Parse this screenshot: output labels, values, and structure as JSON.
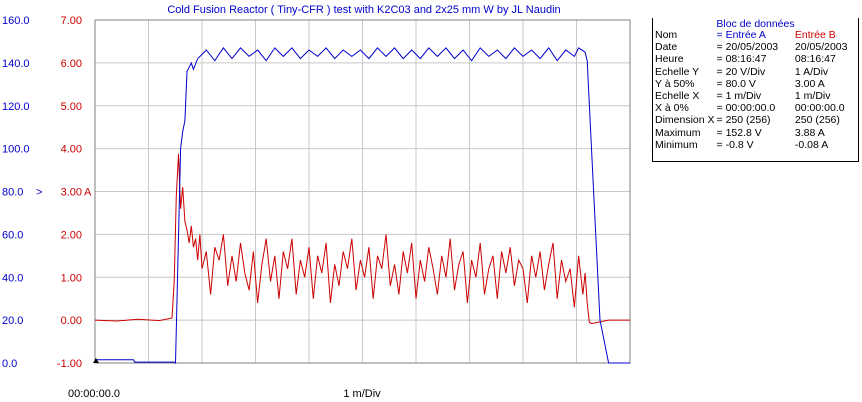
{
  "chart_data": {
    "type": "line",
    "title": "Cold Fusion Reactor ( Tiny-CFR ) test with K2C03 and 2x25 mm W by JL Naudin",
    "x_label_left": "00:00:00.0",
    "x_label_center": "1 m/Div",
    "y_left": {
      "ticks": [
        "0.0",
        "20.0",
        "40.0",
        "60.0",
        "80.0",
        "100.0",
        "120.0",
        "140.0",
        "160.0"
      ],
      "marker": ">",
      "range": [
        0,
        160
      ],
      "color": "#0000cc"
    },
    "y_right": {
      "ticks": [
        "-1.00",
        "0.00",
        "1.00",
        "2.00",
        "3.00",
        "4.00",
        "5.00",
        "6.00",
        "7.00"
      ],
      "marker": "A",
      "range": [
        -1,
        7
      ],
      "color": "#cc0000"
    },
    "x_range": [
      0,
      250
    ],
    "grid": true,
    "series": [
      {
        "name": "Entrée A",
        "axis": "left",
        "color": "#0000cc",
        "x": [
          0,
          18,
          18.5,
          37,
          37.6,
          40,
          41,
          42,
          43,
          44,
          45,
          46,
          48,
          52,
          56,
          60,
          64,
          68,
          72,
          76,
          80,
          84,
          88,
          92,
          96,
          100,
          104,
          108,
          112,
          116,
          120,
          124,
          128,
          132,
          136,
          140,
          144,
          148,
          152,
          156,
          160,
          164,
          168,
          172,
          176,
          180,
          184,
          188,
          192,
          196,
          200,
          204,
          208,
          212,
          216,
          220,
          224,
          226,
          229,
          230,
          233,
          236,
          240,
          250
        ],
        "y": [
          1.5,
          1.5,
          0.4,
          0.4,
          0,
          100,
          108,
          113,
          136,
          138,
          140,
          137,
          142,
          146,
          141,
          147,
          142,
          147,
          143,
          146,
          141,
          147,
          143,
          147,
          142,
          146,
          143,
          147,
          142,
          146,
          143,
          146,
          142,
          147,
          143,
          147,
          142,
          146,
          142,
          147,
          143,
          147,
          142,
          146,
          141,
          147,
          143,
          146,
          142,
          147,
          143,
          146,
          142,
          147,
          141,
          146,
          143,
          147,
          145,
          141,
          80,
          20,
          0,
          0
        ]
      },
      {
        "name": "Entrée B",
        "axis": "right",
        "color": "#cc0000",
        "x": [
          0,
          10,
          20,
          30,
          36,
          37,
          38,
          39,
          40,
          41,
          42,
          43,
          44,
          45,
          46,
          47,
          48,
          49,
          50,
          52,
          54,
          56,
          58,
          60,
          62,
          64,
          66,
          68,
          70,
          72,
          74,
          76,
          78,
          80,
          82,
          84,
          86,
          88,
          90,
          92,
          94,
          96,
          98,
          100,
          102,
          104,
          106,
          108,
          110,
          112,
          114,
          116,
          118,
          120,
          122,
          124,
          126,
          128,
          130,
          132,
          134,
          136,
          138,
          140,
          142,
          144,
          146,
          148,
          150,
          152,
          154,
          156,
          158,
          160,
          162,
          164,
          166,
          168,
          170,
          172,
          174,
          176,
          178,
          180,
          182,
          184,
          186,
          188,
          190,
          192,
          194,
          196,
          198,
          200,
          202,
          204,
          206,
          208,
          210,
          212,
          214,
          216,
          218,
          220,
          222,
          224,
          226,
          228,
          229,
          230,
          231,
          232,
          240,
          250
        ],
        "y": [
          0,
          -0.02,
          0.02,
          -0.01,
          0.05,
          0.9,
          2.9,
          3.88,
          2.6,
          3.1,
          2.3,
          2.1,
          1.8,
          2.2,
          1.7,
          1.9,
          1.4,
          2.0,
          1.2,
          1.6,
          0.6,
          1.7,
          1.4,
          2.0,
          0.8,
          1.5,
          0.9,
          1.8,
          1.1,
          0.7,
          1.6,
          0.4,
          1.3,
          1.9,
          0.9,
          1.5,
          0.5,
          1.6,
          1.2,
          1.9,
          0.6,
          1.4,
          1.0,
          1.7,
          0.5,
          1.5,
          1.1,
          1.8,
          0.4,
          1.3,
          0.8,
          1.6,
          1.2,
          1.9,
          0.7,
          1.4,
          1.0,
          1.7,
          0.5,
          1.5,
          1.2,
          2.0,
          0.8,
          1.3,
          0.6,
          1.6,
          1.1,
          1.8,
          0.5,
          1.4,
          0.9,
          1.7,
          1.2,
          0.6,
          1.5,
          1.0,
          1.9,
          0.7,
          1.3,
          1.6,
          0.4,
          1.4,
          1.0,
          1.8,
          0.6,
          1.2,
          1.5,
          0.5,
          1.6,
          1.1,
          1.7,
          0.8,
          1.4,
          1.2,
          0.4,
          1.5,
          1.0,
          1.6,
          0.7,
          1.3,
          1.8,
          0.5,
          1.4,
          0.9,
          1.2,
          0.3,
          1.5,
          0.6,
          1.1,
          0.4,
          -0.05,
          -0.08,
          0,
          0
        ]
      }
    ]
  },
  "panel": {
    "title": "Bloc de données",
    "rows": [
      {
        "label": "Nom",
        "a": "= Entrée A",
        "b": "Entrée B"
      },
      {
        "label": "Date",
        "a": "= 20/05/2003",
        "b": "20/05/2003"
      },
      {
        "label": "Heure",
        "a": "= 08:16:47",
        "b": "08:16:47"
      },
      {
        "label": "Echelle Y",
        "a": "=    20   V/Div",
        "b": "1     A/Div"
      },
      {
        "label": "Y à 50%",
        "a": "=    80.0 V",
        "b": "3.00 A"
      },
      {
        "label": "Echelle X",
        "a": "=     1   m/Div",
        "b": "1     m/Div"
      },
      {
        "label": "X à 0%",
        "a": "= 00:00:00.0",
        "b": "00:00:00.0"
      },
      {
        "label": "Dimension X",
        "a": "= 250 (256)",
        "b": "250 (256)"
      },
      {
        "label": "Maximum",
        "a": "=   152.8 V",
        "b": "3.88 A"
      },
      {
        "label": "Minimum",
        "a": "=    -0.8 V",
        "b": "-0.08 A"
      }
    ]
  }
}
